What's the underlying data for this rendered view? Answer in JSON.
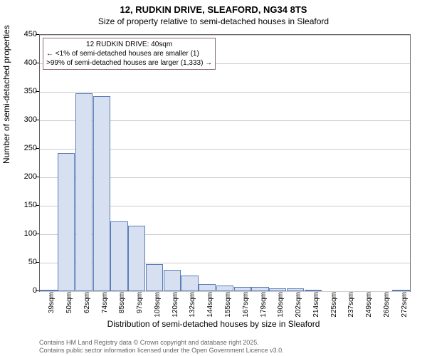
{
  "title": {
    "line1": "12, RUDKIN DRIVE, SLEAFORD, NG34 8TS",
    "line2": "Size of property relative to semi-detached houses in Sleaford"
  },
  "chart": {
    "type": "histogram",
    "ylabel": "Number of semi-detached properties",
    "xlabel": "Distribution of semi-detached houses by size in Sleaford",
    "ylim": [
      0,
      450
    ],
    "yticks": [
      0,
      50,
      100,
      150,
      200,
      250,
      300,
      350,
      400,
      450
    ],
    "xticks": [
      "39sqm",
      "50sqm",
      "62sqm",
      "74sqm",
      "85sqm",
      "97sqm",
      "109sqm",
      "120sqm",
      "132sqm",
      "144sqm",
      "155sqm",
      "167sqm",
      "179sqm",
      "190sqm",
      "202sqm",
      "214sqm",
      "225sqm",
      "237sqm",
      "249sqm",
      "260sqm",
      "272sqm"
    ],
    "bars": [
      3,
      243,
      348,
      342,
      122,
      115,
      48,
      38,
      28,
      12,
      10,
      8,
      8,
      5,
      5,
      3,
      0,
      0,
      0,
      0,
      2
    ],
    "bar_fill": "#d6e0f0",
    "bar_border": "#5b7db8",
    "grid_color": "#cccccc",
    "background": "#ffffff"
  },
  "annotation": {
    "title": "12 RUDKIN DRIVE: 40sqm",
    "line1": "← <1% of semi-detached houses are smaller (1)",
    "line2": ">99% of semi-detached houses are larger (1,333) →"
  },
  "footer": {
    "line1": "Contains HM Land Registry data © Crown copyright and database right 2025.",
    "line2": "Contains public sector information licensed under the Open Government Licence v3.0."
  }
}
